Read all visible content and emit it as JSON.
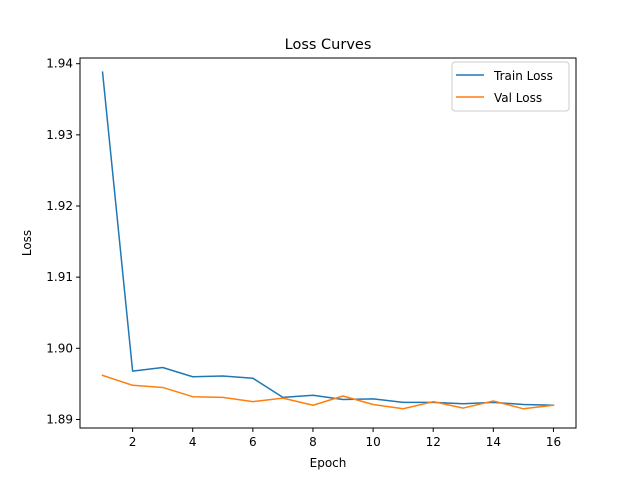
{
  "chart_data": {
    "type": "line",
    "title": "Loss Curves",
    "xlabel": "Epoch",
    "ylabel": "Loss",
    "xlim": [
      0.25,
      16.75
    ],
    "ylim": [
      1.8888,
      1.9408
    ],
    "xticks": [
      2,
      4,
      6,
      8,
      10,
      12,
      14,
      16
    ],
    "yticks": [
      1.89,
      1.9,
      1.91,
      1.92,
      1.93,
      1.94
    ],
    "grid": false,
    "legend_position": "upper right",
    "x": [
      1,
      2,
      3,
      4,
      5,
      6,
      7,
      8,
      9,
      10,
      11,
      12,
      13,
      14,
      15,
      16
    ],
    "series": [
      {
        "name": "Train Loss",
        "color": "#1f77b4",
        "values": [
          1.9388,
          1.8968,
          1.8973,
          1.896,
          1.8961,
          1.8958,
          1.8931,
          1.8934,
          1.8928,
          1.8929,
          1.8924,
          1.8924,
          1.8922,
          1.8924,
          1.8921,
          1.892
        ]
      },
      {
        "name": "Val Loss",
        "color": "#ff7f0e",
        "values": [
          1.8962,
          1.8948,
          1.8945,
          1.8932,
          1.8931,
          1.8925,
          1.893,
          1.892,
          1.8933,
          1.8921,
          1.8915,
          1.8925,
          1.8916,
          1.8926,
          1.8915,
          1.892
        ]
      }
    ]
  }
}
